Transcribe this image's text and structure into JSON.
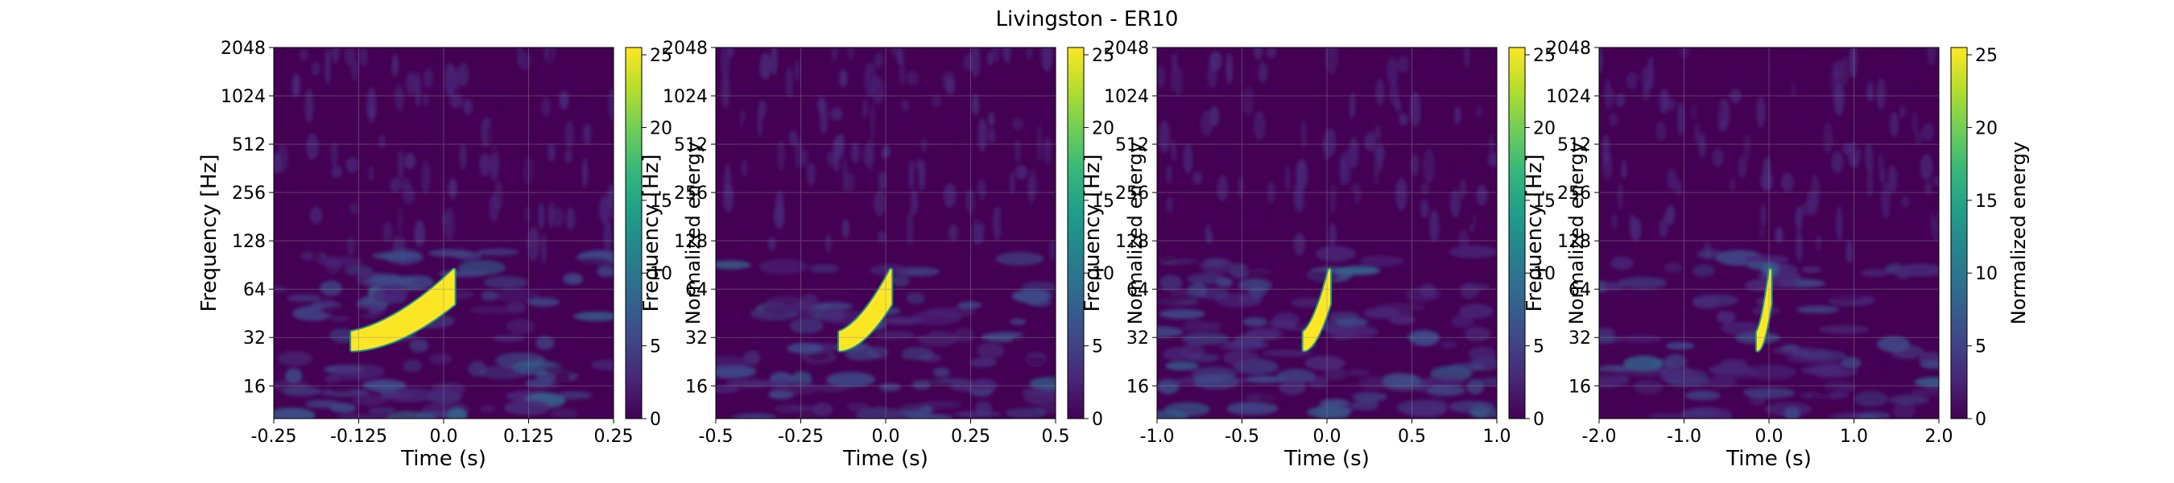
{
  "figure_title": "Livingston - ER10",
  "colors": {
    "colormap": [
      "#440154",
      "#482878",
      "#3e4a89",
      "#31688e",
      "#26828e",
      "#1f9e89",
      "#35b779",
      "#6ece58",
      "#b5de2b",
      "#fde725"
    ],
    "background": "#440154",
    "grid": "#8c8c8c"
  },
  "chart_data": [
    {
      "type": "heatmap",
      "title": "",
      "xlabel": "Time (s)",
      "ylabel": "Frequency [Hz]",
      "xlim": [
        -0.25,
        0.25
      ],
      "xticks": [
        -0.25,
        -0.125,
        0.0,
        0.125,
        0.25
      ],
      "xtick_labels": [
        "-0.25",
        "-0.125",
        "0.0",
        "0.125",
        "0.25"
      ],
      "ylim": [
        10,
        2048
      ],
      "yscale": "log2",
      "yticks": [
        16,
        32,
        64,
        128,
        256,
        512,
        1024,
        2048
      ],
      "ytick_labels": [
        "16",
        "32",
        "64",
        "128",
        "256",
        "512",
        "1024",
        "2048"
      ],
      "colorbar": {
        "label": "Normalized energy",
        "range": [
          0,
          25.5
        ],
        "ticks": [
          0,
          5,
          10,
          15,
          20,
          25
        ],
        "tick_labels": [
          "0",
          "5",
          "10",
          "15",
          "20",
          "25"
        ]
      },
      "signal": {
        "t_start": -0.135,
        "t_end": 0.015,
        "f_start": 30,
        "f_end": 58,
        "peak_energy": 25
      }
    },
    {
      "type": "heatmap",
      "title": "",
      "xlabel": "Time (s)",
      "ylabel": "Frequency [Hz]",
      "xlim": [
        -0.5,
        0.5
      ],
      "xticks": [
        -0.5,
        -0.25,
        0.0,
        0.25,
        0.5
      ],
      "xtick_labels": [
        "-0.5",
        "-0.25",
        "0.0",
        "0.25",
        "0.5"
      ],
      "ylim": [
        10,
        2048
      ],
      "yscale": "log2",
      "yticks": [
        16,
        32,
        64,
        128,
        256,
        512,
        1024,
        2048
      ],
      "ytick_labels": [
        "16",
        "32",
        "64",
        "128",
        "256",
        "512",
        "1024",
        "2048"
      ],
      "colorbar": {
        "label": "Normalized energy",
        "range": [
          0,
          25.5
        ],
        "ticks": [
          0,
          5,
          10,
          15,
          20,
          25
        ],
        "tick_labels": [
          "0",
          "5",
          "10",
          "15",
          "20",
          "25"
        ]
      },
      "signal": {
        "t_start": -0.135,
        "t_end": 0.015,
        "f_start": 30,
        "f_end": 58,
        "peak_energy": 25
      }
    },
    {
      "type": "heatmap",
      "title": "",
      "xlabel": "Time (s)",
      "ylabel": "Frequency [Hz]",
      "xlim": [
        -1.0,
        1.0
      ],
      "xticks": [
        -1.0,
        -0.5,
        0.0,
        0.5,
        1.0
      ],
      "xtick_labels": [
        "-1.0",
        "-0.5",
        "0.0",
        "0.5",
        "1.0"
      ],
      "ylim": [
        10,
        2048
      ],
      "yscale": "log2",
      "yticks": [
        16,
        32,
        64,
        128,
        256,
        512,
        1024,
        2048
      ],
      "ytick_labels": [
        "16",
        "32",
        "64",
        "128",
        "256",
        "512",
        "1024",
        "2048"
      ],
      "colorbar": {
        "label": "Normalized energy",
        "range": [
          0,
          25.5
        ],
        "ticks": [
          0,
          5,
          10,
          15,
          20,
          25
        ],
        "tick_labels": [
          "0",
          "5",
          "10",
          "15",
          "20",
          "25"
        ]
      },
      "signal": {
        "t_start": -0.135,
        "t_end": 0.015,
        "f_start": 30,
        "f_end": 58,
        "peak_energy": 25
      }
    },
    {
      "type": "heatmap",
      "title": "",
      "xlabel": "Time (s)",
      "ylabel": "Frequency [Hz]",
      "xlim": [
        -2.0,
        2.0
      ],
      "xticks": [
        -2.0,
        -1.0,
        0.0,
        1.0,
        2.0
      ],
      "xtick_labels": [
        "-2.0",
        "-1.0",
        "0.0",
        "1.0",
        "2.0"
      ],
      "ylim": [
        10,
        2048
      ],
      "yscale": "log2",
      "yticks": [
        16,
        32,
        64,
        128,
        256,
        512,
        1024,
        2048
      ],
      "ytick_labels": [
        "16",
        "32",
        "64",
        "128",
        "256",
        "512",
        "1024",
        "2048"
      ],
      "colorbar": {
        "label": "Normalized energy",
        "range": [
          0,
          25.5
        ],
        "ticks": [
          0,
          5,
          10,
          15,
          20,
          25
        ],
        "tick_labels": [
          "0",
          "5",
          "10",
          "15",
          "20",
          "25"
        ]
      },
      "signal": {
        "t_start": -0.135,
        "t_end": 0.015,
        "f_start": 30,
        "f_end": 58,
        "peak_energy": 25
      }
    }
  ]
}
